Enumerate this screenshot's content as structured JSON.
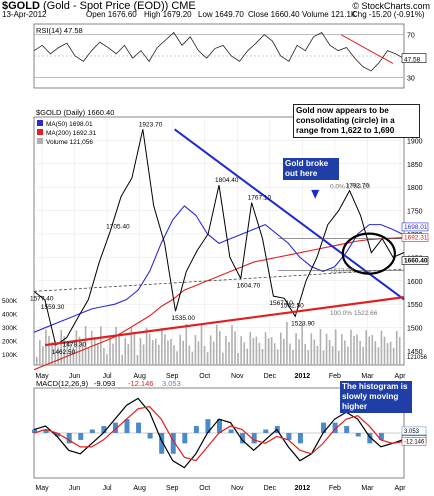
{
  "header": {
    "symbol": "$GOLD",
    "name": "(Gold - Spot Price (EOD)) CME",
    "date": "13-Apr-2012",
    "open": "Open 1676.60",
    "high": "High 1679.20",
    "low": "Low 1649.70",
    "close": "Close 1660.40",
    "volume": "Volume 121.1K",
    "change": "Chg -15.20 (-0.91%)",
    "brand": "© StockCharts.com"
  },
  "colors": {
    "price": "#000000",
    "ma50": "#2b2bd8",
    "ma200": "#e02020",
    "trendline": "#1a2ad0",
    "support": "#e02020",
    "volume": "#b0b0b0",
    "histogram": "#4a8ac8"
  },
  "annotations": {
    "consolidating": "Gold now appears to be consolidating (circle) in a range from 1,622 to 1,690",
    "broke_out": "Gold broke out here",
    "histogram": "The histogram is slowly moving higher"
  },
  "chart_data": [
    {
      "type": "line",
      "panel": "RSI",
      "title": "RSI(14) 47.58",
      "ylim": [
        30,
        70
      ],
      "yticks": [
        70,
        50,
        30
      ],
      "last": "47.58",
      "values": [
        55,
        60,
        52,
        58,
        62,
        50,
        45,
        55,
        63,
        58,
        52,
        60,
        48,
        55,
        45,
        58,
        65,
        72,
        60,
        68,
        55,
        48,
        57,
        60,
        50,
        45,
        55,
        62,
        70,
        64,
        50,
        45,
        60,
        55,
        68,
        72,
        60,
        55,
        58,
        48,
        40,
        36,
        44,
        55,
        52,
        47.58
      ]
    },
    {
      "type": "line",
      "panel": "Price",
      "title": "$GOLD (Daily) 1660.40",
      "ylim": [
        1400,
        1900
      ],
      "yticks": [
        1900,
        1850,
        1800,
        1750,
        1700,
        1650,
        1600,
        1550,
        1500,
        1450
      ],
      "x_labels": [
        "May",
        "Jun",
        "Jul",
        "Aug",
        "Sep",
        "Oct",
        "Nov",
        "Dec",
        "2012",
        "Feb",
        "Mar",
        "Apr"
      ],
      "series": [
        {
          "name": "MA(50) 1698.01",
          "values": [
            1490,
            1500,
            1510,
            1520,
            1530,
            1540,
            1545,
            1550,
            1560,
            1580,
            1620,
            1680,
            1730,
            1760,
            1740,
            1700,
            1680,
            1690,
            1700,
            1710,
            1720,
            1700,
            1680,
            1650,
            1630,
            1620,
            1630,
            1660,
            1700,
            1720,
            1720,
            1710,
            1698.01
          ]
        },
        {
          "name": "MA(200) 1692.31",
          "values": [
            1410,
            1420,
            1430,
            1440,
            1450,
            1460,
            1470,
            1480,
            1495,
            1510,
            1525,
            1545,
            1560,
            1580,
            1590,
            1600,
            1610,
            1620,
            1630,
            1640,
            1645,
            1650,
            1655,
            1660,
            1665,
            1670,
            1675,
            1680,
            1685,
            1688,
            1690,
            1691,
            1692.31
          ]
        },
        {
          "name": "Volume 121,056",
          "values": []
        }
      ],
      "price_points": [
        1577.4,
        1559.3,
        1462.5,
        1478.3,
        1520,
        1560,
        1640,
        1705.4,
        1780,
        1820,
        1923.7,
        1760,
        1680,
        1535.0,
        1620,
        1665,
        1700,
        1804.4,
        1650,
        1604.7,
        1767.1,
        1690,
        1567.1,
        1562.5,
        1523.9,
        1600,
        1650,
        1720,
        1750,
        1792.7,
        1740,
        1660,
        1690,
        1650,
        1660.4
      ],
      "point_labels": [
        "1577.40",
        "1559.30",
        "1462.50",
        "1478.30",
        "1705.40",
        "1923.70",
        "1535.00",
        "1804.40",
        "1604.70",
        "1767.10",
        "1567.10",
        "1562.50",
        "1523.90",
        "1792.70"
      ],
      "fib_labels": [
        "0.0% 1793.20",
        "100.0% 1522.66",
        "1613.00"
      ],
      "right_labels": [
        "1698.01",
        "1692.31",
        "1660.40"
      ],
      "volume_ticks": [
        "500K",
        "400K",
        "300K",
        "200K",
        "100K"
      ],
      "volume_last": "121056"
    },
    {
      "type": "line",
      "panel": "MACD",
      "title": "MACD(12,26,9)",
      "values_text": [
        "-9.093",
        "-12.146",
        "3.053"
      ],
      "right_labels": [
        "3.053",
        "-9.093",
        "-12.146"
      ],
      "ylim": [
        -60,
        60
      ],
      "x_labels": [
        "May",
        "Jun",
        "Jul",
        "Aug",
        "Sep",
        "Oct",
        "Nov",
        "Dec",
        "2012",
        "Feb",
        "Mar",
        "Apr"
      ],
      "series": [
        {
          "name": "MACD",
          "values": [
            5,
            10,
            -5,
            -25,
            -30,
            -15,
            0,
            20,
            40,
            50,
            30,
            -10,
            -40,
            -50,
            -30,
            0,
            20,
            15,
            -10,
            -25,
            -10,
            5,
            -20,
            -40,
            -30,
            0,
            20,
            30,
            20,
            -5,
            -20,
            -15,
            -9.093
          ]
        },
        {
          "name": "Signal",
          "values": [
            0,
            5,
            0,
            -10,
            -20,
            -20,
            -10,
            5,
            20,
            35,
            38,
            20,
            -10,
            -35,
            -40,
            -20,
            0,
            10,
            5,
            -10,
            -15,
            -5,
            -10,
            -25,
            -30,
            -15,
            5,
            20,
            25,
            10,
            -10,
            -15,
            -12.146
          ]
        },
        {
          "name": "Histogram",
          "values": [
            5,
            5,
            -5,
            -15,
            -10,
            5,
            10,
            15,
            20,
            15,
            -8,
            -30,
            -30,
            -15,
            10,
            20,
            20,
            5,
            -15,
            -15,
            5,
            10,
            -10,
            -15,
            0,
            15,
            15,
            10,
            -5,
            -15,
            -10,
            0,
            3.053
          ]
        }
      ]
    }
  ]
}
